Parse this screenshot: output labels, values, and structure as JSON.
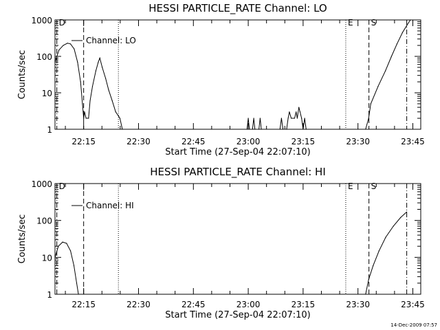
{
  "footer_timestamp": "14-Dec-2009 07:57",
  "chart_data": [
    {
      "type": "line",
      "title": "HESSI PARTICLE_RATE Channel: LO",
      "xlabel": "Start Time (27-Sep-04 22:07:10)",
      "ylabel": "Counts/sec",
      "legend": "Channel: LO",
      "legend_placement": "top-left",
      "y_scale": "log",
      "ylim": [
        1,
        1000
      ],
      "xlim": [
        "22:07:10",
        "23:47:10"
      ],
      "x_ticks": [
        "22:15",
        "22:30",
        "22:45",
        "23:00",
        "23:15",
        "23:30",
        "23:45"
      ],
      "y_ticks": [
        "1",
        "10",
        "100",
        "1000"
      ],
      "markers": [
        {
          "label": "D",
          "time": "22:07:40",
          "style": "dash-dot"
        },
        {
          "label": "",
          "time": "22:15:00",
          "style": "dashed"
        },
        {
          "label": "",
          "time": "22:24:30",
          "style": "dotted"
        },
        {
          "label": "E",
          "time": "23:26:40",
          "style": "dotted"
        },
        {
          "label": "S",
          "time": "23:33:00",
          "style": "dashed"
        },
        {
          "label": "",
          "time": "23:43:20",
          "style": "dash-dot"
        }
      ],
      "series": [
        {
          "name": "Channel: LO",
          "segments": [
            [
              [
                "22:07:10",
                70
              ],
              [
                "22:08:15",
                150
              ],
              [
                "22:09:25",
                200
              ],
              [
                "22:10:35",
                230
              ],
              [
                "22:11:25",
                220
              ],
              [
                "22:12:25",
                160
              ],
              [
                "22:13:20",
                70
              ],
              [
                "22:14:10",
                20
              ],
              [
                "22:14:40",
                5
              ],
              [
                "22:15:00",
                2
              ],
              [
                "22:15:15",
                3
              ],
              [
                "22:15:40",
                2
              ],
              [
                "22:16:20",
                2
              ],
              [
                "22:16:45",
                6
              ],
              [
                "22:17:25",
                15
              ],
              [
                "22:18:20",
                40
              ],
              [
                "22:19:00",
                70
              ],
              [
                "22:19:25",
                90
              ],
              [
                "22:20:05",
                50
              ],
              [
                "22:21:00",
                25
              ],
              [
                "22:21:50",
                12
              ],
              [
                "22:22:50",
                6
              ],
              [
                "22:23:45",
                3
              ],
              [
                "22:24:55",
                2
              ],
              [
                "22:25:35",
                1
              ]
            ],
            [
              [
                "22:59:40",
                1
              ],
              [
                "23:00:00",
                2
              ],
              [
                "23:00:20",
                1
              ],
              [
                "23:01:10",
                1
              ],
              [
                "23:01:30",
                2
              ],
              [
                "23:01:50",
                1
              ],
              [
                "23:02:55",
                1
              ],
              [
                "23:03:15",
                2
              ],
              [
                "23:03:35",
                1
              ]
            ],
            [
              [
                "23:08:40",
                1
              ],
              [
                "23:09:05",
                2
              ],
              [
                "23:09:30",
                1
              ],
              [
                "23:10:30",
                1
              ],
              [
                "23:10:55",
                2
              ],
              [
                "23:11:15",
                3
              ],
              [
                "23:11:45",
                2
              ],
              [
                "23:12:40",
                2
              ],
              [
                "23:13:05",
                3
              ],
              [
                "23:13:25",
                2
              ],
              [
                "23:13:50",
                4
              ],
              [
                "23:14:10",
                3
              ],
              [
                "23:14:35",
                2
              ],
              [
                "23:15:00",
                1
              ],
              [
                "23:15:25",
                2
              ],
              [
                "23:15:50",
                1
              ]
            ],
            [
              [
                "23:32:05",
                1
              ],
              [
                "23:32:55",
                2
              ],
              [
                "23:33:30",
                5
              ],
              [
                "23:35:30",
                15
              ],
              [
                "23:37:30",
                40
              ],
              [
                "23:39:10",
                100
              ],
              [
                "23:40:40",
                220
              ],
              [
                "23:42:10",
                450
              ],
              [
                "23:43:20",
                700
              ],
              [
                "23:44:20",
                1000
              ]
            ]
          ]
        }
      ]
    },
    {
      "type": "line",
      "title": "HESSI PARTICLE_RATE Channel: HI",
      "xlabel": "Start Time (27-Sep-04 22:07:10)",
      "ylabel": "Counts/sec",
      "legend": "Channel: HI",
      "legend_placement": "top-left",
      "y_scale": "log",
      "ylim": [
        1,
        1000
      ],
      "xlim": [
        "22:07:10",
        "23:47:10"
      ],
      "x_ticks": [
        "22:15",
        "22:30",
        "22:45",
        "23:00",
        "23:15",
        "23:30",
        "23:45"
      ],
      "y_ticks": [
        "1",
        "10",
        "100",
        "1000"
      ],
      "markers": [
        {
          "label": "D",
          "time": "22:07:40",
          "style": "dash-dot"
        },
        {
          "label": "",
          "time": "22:15:00",
          "style": "dashed"
        },
        {
          "label": "",
          "time": "22:24:30",
          "style": "dotted"
        },
        {
          "label": "E",
          "time": "23:26:40",
          "style": "dotted"
        },
        {
          "label": "S",
          "time": "23:33:00",
          "style": "dashed"
        },
        {
          "label": "",
          "time": "23:43:20",
          "style": "dash-dot"
        }
      ],
      "series": [
        {
          "name": "Channel: HI",
          "segments": [
            [
              [
                "22:07:10",
                10
              ],
              [
                "22:08:05",
                20
              ],
              [
                "22:09:15",
                26
              ],
              [
                "22:10:20",
                24
              ],
              [
                "22:11:25",
                15
              ],
              [
                "22:12:20",
                6
              ],
              [
                "22:13:05",
                2
              ],
              [
                "22:13:35",
                1
              ]
            ],
            [
              [
                "23:32:05",
                1
              ],
              [
                "23:32:55",
                2.5
              ],
              [
                "23:34:10",
                6
              ],
              [
                "23:35:45",
                15
              ],
              [
                "23:37:35",
                35
              ],
              [
                "23:39:40",
                70
              ],
              [
                "23:41:40",
                120
              ],
              [
                "23:43:20",
                170
              ]
            ]
          ]
        }
      ]
    }
  ]
}
